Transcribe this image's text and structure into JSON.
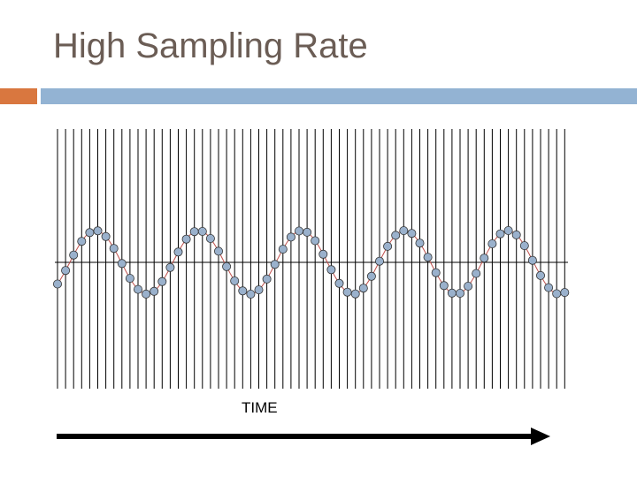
{
  "slide": {
    "title": "High Sampling Rate"
  },
  "colors": {
    "title": "#6b5d55",
    "accent_orange": "#d9773f",
    "accent_blue": "#93b3d3",
    "sample_fill": "#9ab1cc",
    "sample_stroke": "#333333",
    "signal": "#c0504d"
  },
  "diagram": {
    "time_label": "TIME",
    "sample_line_count": 64,
    "samples_per_cycle": 12.8,
    "cycles": 5
  }
}
